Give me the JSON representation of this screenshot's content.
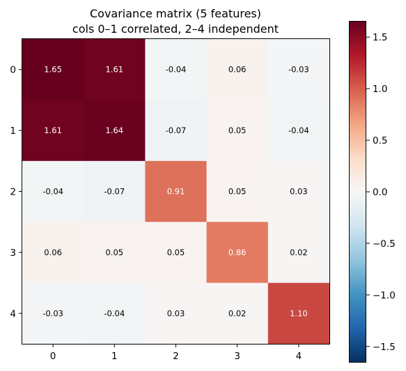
{
  "chart_data": {
    "type": "heatmap",
    "title_lines": [
      "Covariance matrix (5 features)",
      "cols 0–1 correlated, 2–4 independent"
    ],
    "x_ticks": [
      "0",
      "1",
      "2",
      "3",
      "4"
    ],
    "y_ticks": [
      "0",
      "1",
      "2",
      "3",
      "4"
    ],
    "cell_labels": [
      [
        "1.65",
        "1.61",
        "-0.04",
        "0.06",
        "-0.03"
      ],
      [
        "1.61",
        "1.64",
        "-0.07",
        "0.05",
        "-0.04"
      ],
      [
        "-0.04",
        "-0.07",
        "0.91",
        "0.05",
        "0.03"
      ],
      [
        "0.06",
        "0.05",
        "0.05",
        "0.86",
        "0.02"
      ],
      [
        "-0.03",
        "-0.04",
        "0.03",
        "0.02",
        "1.10"
      ]
    ],
    "values": [
      [
        1.65,
        1.61,
        -0.04,
        0.06,
        -0.03
      ],
      [
        1.61,
        1.64,
        -0.07,
        0.05,
        -0.04
      ],
      [
        -0.04,
        -0.07,
        0.91,
        0.05,
        0.03
      ],
      [
        0.06,
        0.05,
        0.05,
        0.86,
        0.02
      ],
      [
        -0.03,
        -0.04,
        0.03,
        0.02,
        1.1
      ]
    ],
    "colormap": "RdBu_r",
    "color_range": [
      -1.65,
      1.65
    ],
    "colorbar": {
      "ticks": [
        -1.5,
        -1.0,
        -0.5,
        0.0,
        0.5,
        1.0,
        1.5
      ],
      "tick_labels": [
        "−1.5",
        "−1.0",
        "−0.5",
        "0.0",
        "0.5",
        "1.0",
        "1.5"
      ]
    }
  }
}
